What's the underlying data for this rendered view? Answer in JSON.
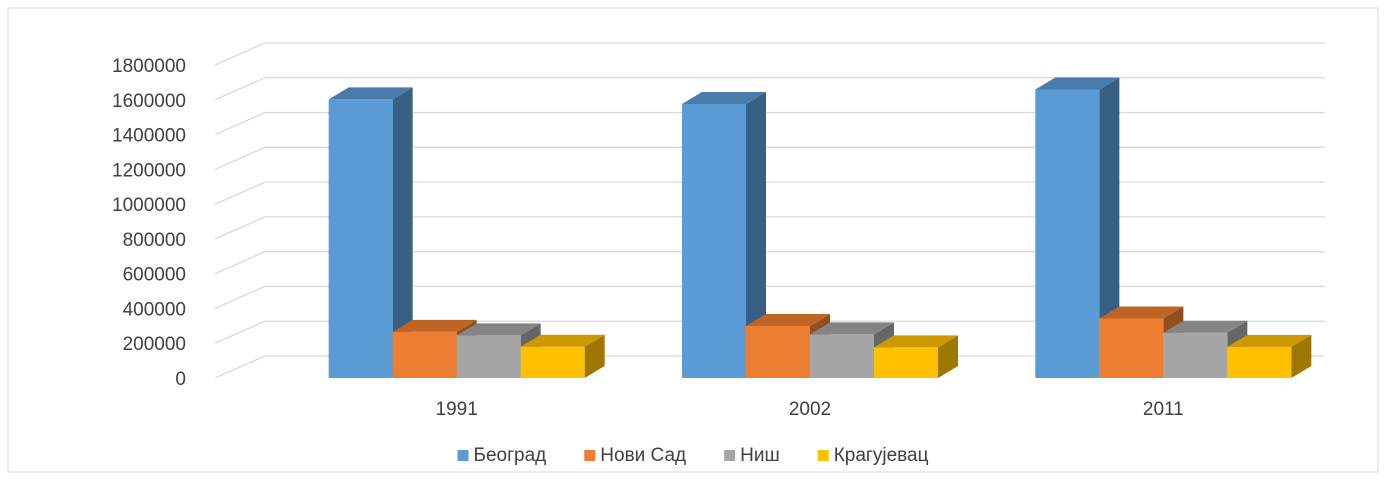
{
  "chart_data": {
    "type": "bar3d",
    "categories": [
      "1991",
      "2002",
      "2011"
    ],
    "series": [
      {
        "name": "Београд",
        "color": "#5b9bd5",
        "values": [
          1602000,
          1576000,
          1659000
        ]
      },
      {
        "name": "Нови Сад",
        "color": "#ed7d31",
        "values": [
          265000,
          299000,
          342000
        ]
      },
      {
        "name": "Ниш",
        "color": "#a5a5a5",
        "values": [
          245000,
          251000,
          260000
        ]
      },
      {
        "name": "Крагујевац",
        "color": "#ffc000",
        "values": [
          180000,
          176000,
          179000
        ]
      }
    ],
    "ylim": [
      0,
      1800000
    ],
    "yticks": [
      0,
      200000,
      400000,
      600000,
      800000,
      1000000,
      1200000,
      1400000,
      1600000,
      1800000
    ],
    "grid": true,
    "legend": "bottom"
  }
}
